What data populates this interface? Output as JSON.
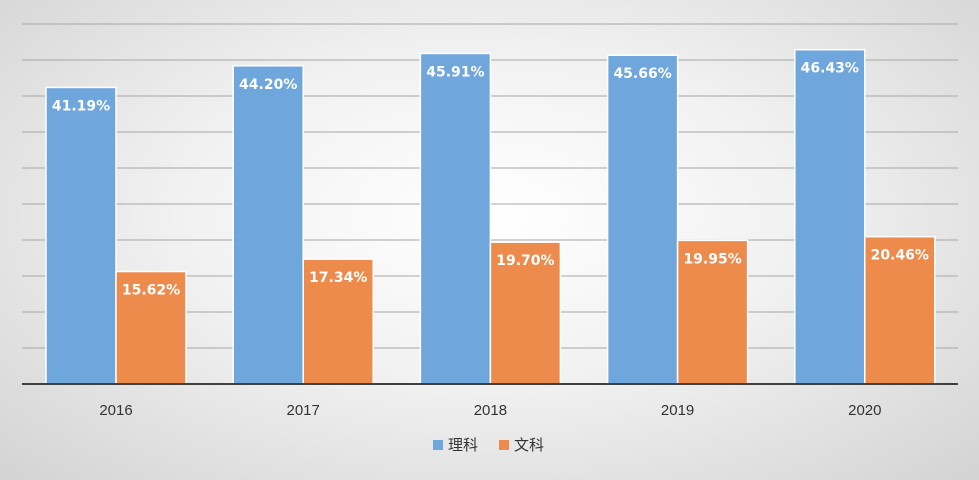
{
  "chart_data": {
    "type": "bar",
    "categories": [
      "2016",
      "2017",
      "2018",
      "2019",
      "2020"
    ],
    "series": [
      {
        "name": "理科",
        "color": "#6fa6db",
        "values": [
          41.19,
          44.2,
          45.91,
          45.66,
          46.43
        ],
        "labels": [
          "41.19%",
          "44.20%",
          "45.91%",
          "45.66%",
          "46.43%"
        ]
      },
      {
        "name": "文科",
        "color": "#ed8b4c",
        "values": [
          15.62,
          17.34,
          19.7,
          19.95,
          20.46
        ],
        "labels": [
          "15.62%",
          "17.34%",
          "19.70%",
          "19.95%",
          "20.46%"
        ]
      }
    ],
    "title": "",
    "xlabel": "",
    "ylabel": "",
    "ylim": [
      0,
      50
    ],
    "grid": true,
    "legend_position": "bottom"
  }
}
